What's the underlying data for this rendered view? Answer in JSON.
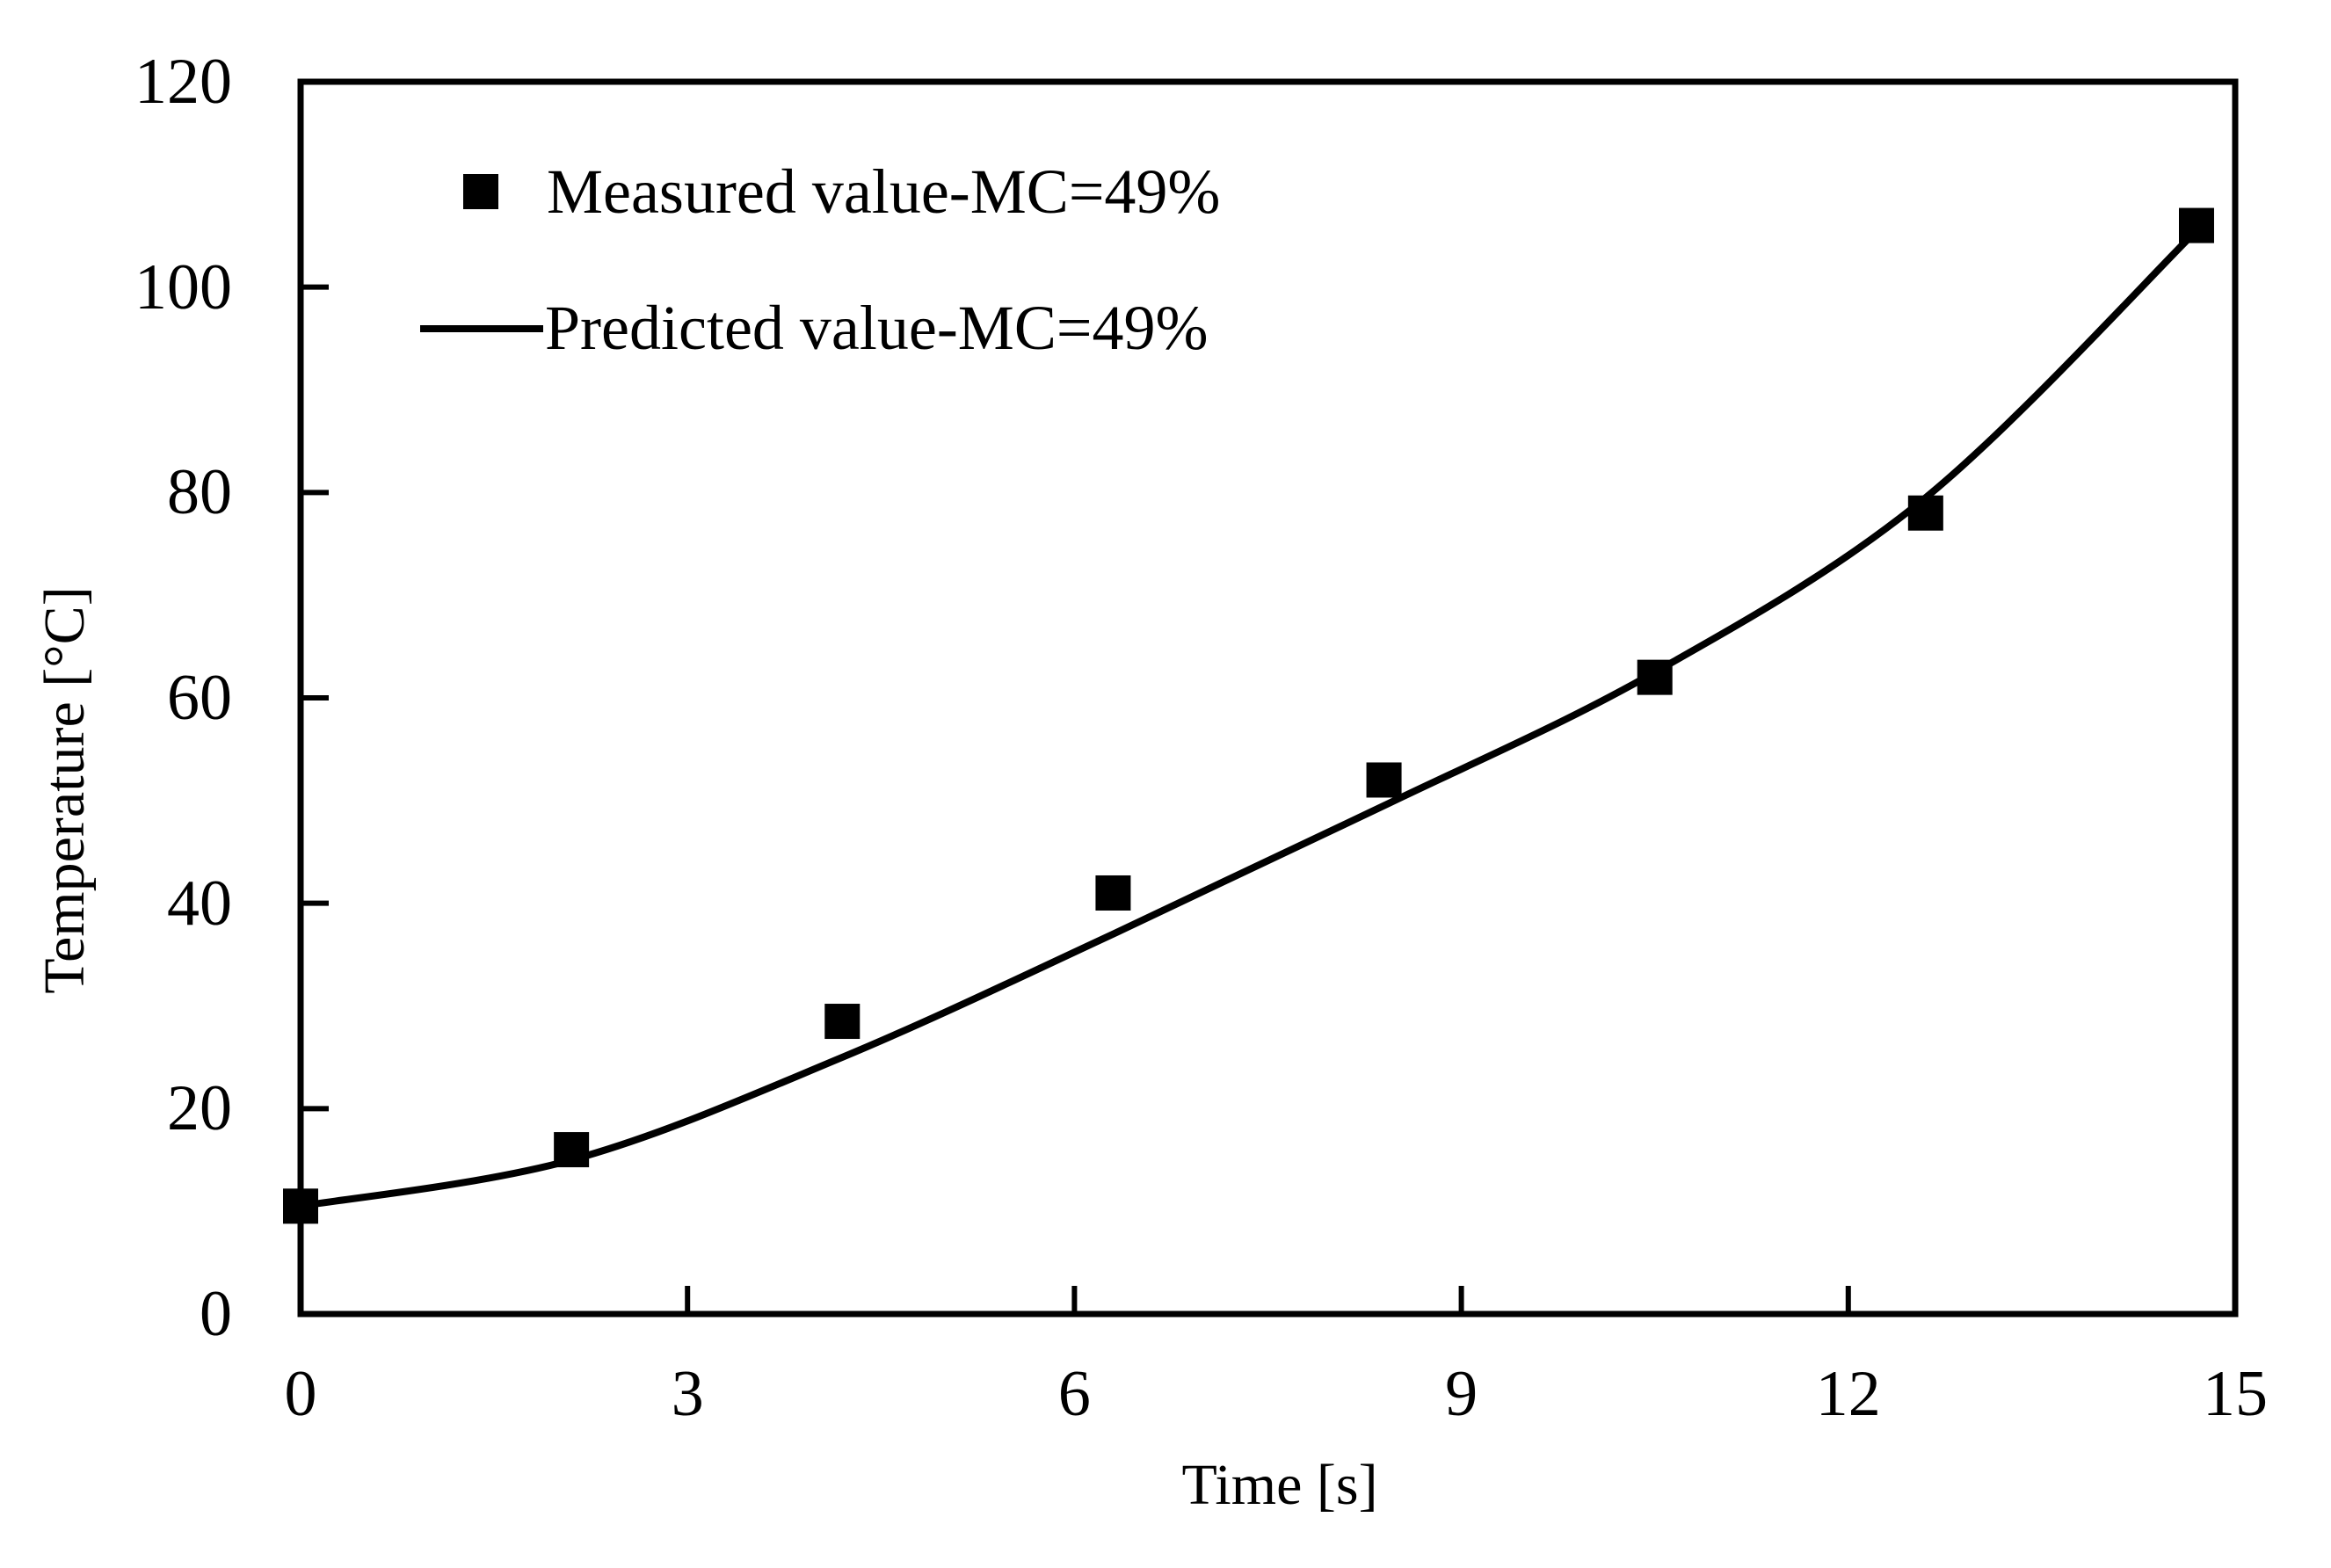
{
  "figure": {
    "background_color": "#ffffff",
    "foreground_color": "#000000"
  },
  "legend": {
    "position": "top-left-inside",
    "items": [
      {
        "label": "Measured value-MC=49%",
        "swatch": "square-marker",
        "color": "#000000"
      },
      {
        "label": "Predicted value-MC=49%",
        "swatch": "line",
        "color": "#000000"
      }
    ]
  },
  "chart_data": {
    "type": "scatter",
    "title": "",
    "xlabel": "Time [s]",
    "ylabel": "Temperature [°C]",
    "xlim": [
      0,
      15
    ],
    "ylim": [
      0,
      120
    ],
    "x_ticks": [
      0,
      3,
      6,
      9,
      12,
      15
    ],
    "y_ticks": [
      0,
      20,
      40,
      60,
      80,
      100,
      120
    ],
    "grid": false,
    "series": [
      {
        "name": "Measured value-MC=49%",
        "type": "scatter",
        "marker": "square",
        "color": "#000000",
        "points": [
          [
            0,
            10.5
          ],
          [
            2.1,
            16
          ],
          [
            4.2,
            28.5
          ],
          [
            6.3,
            41
          ],
          [
            8.4,
            52
          ],
          [
            10.5,
            62
          ],
          [
            12.6,
            78
          ],
          [
            14.7,
            106
          ]
        ]
      },
      {
        "name": "Predicted value-MC=49%",
        "type": "line",
        "color": "#000000",
        "points": [
          [
            0,
            10.5
          ],
          [
            2.1,
            15.0
          ],
          [
            4.2,
            25.0
          ],
          [
            6.3,
            37.0
          ],
          [
            8.4,
            49.5
          ],
          [
            10.5,
            62.5
          ],
          [
            12.6,
            79.5
          ],
          [
            14.7,
            105.5
          ]
        ]
      }
    ]
  }
}
